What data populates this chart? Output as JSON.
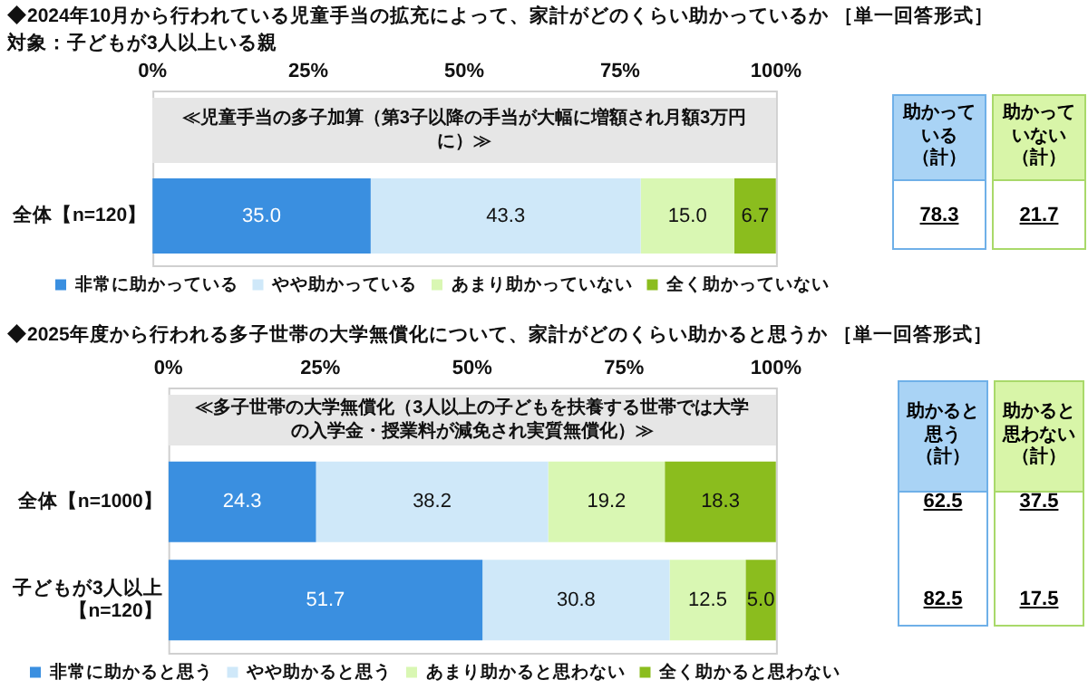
{
  "chart_data": [
    {
      "type": "bar",
      "orientation": "horizontal",
      "stacked": true,
      "title": "◆2024年10月から行われている児童手当の拡充によって、家計がどのくらい助かっているか ［単一回答形式］",
      "subtitle": "対象：子どもが3人以上いる親",
      "categories": [
        "全体【n=120】"
      ],
      "series": [
        {
          "name": "非常に助かっている",
          "color": "#3a8fe0",
          "values": [
            35.0
          ],
          "value_labels": [
            "35.0"
          ]
        },
        {
          "name": "やや助かっている",
          "color": "#cfe8f9",
          "values": [
            43.3
          ],
          "value_labels": [
            "43.3"
          ]
        },
        {
          "name": "あまり助かっていない",
          "color": "#d9f7b3",
          "values": [
            15.0
          ],
          "value_labels": [
            "15.0"
          ]
        },
        {
          "name": "全く助かっていない",
          "color": "#8bbd1e",
          "values": [
            6.7
          ],
          "value_labels": [
            "6.7"
          ]
        }
      ],
      "xlim": [
        0,
        100
      ],
      "xticks": [
        {
          "value": 0,
          "label": "0%"
        },
        {
          "value": 25,
          "label": "25%"
        },
        {
          "value": 50,
          "label": "50%"
        },
        {
          "value": 75,
          "label": "75%"
        },
        {
          "value": 100,
          "label": "100%"
        }
      ],
      "legend": "bottom",
      "grid": false,
      "annotations": [
        "≪児童手当の多子加算（第3子以降の手当が大幅に増額され月額3万円に）≫",
        "助かっている（計）",
        "78.3",
        "助かっていない（計）",
        "21.7"
      ]
    },
    {
      "type": "bar",
      "orientation": "horizontal",
      "stacked": true,
      "title": "◆2025年度から行われる多子世帯の大学無償化について、家計がどのくらい助かると思うか ［単一回答形式］",
      "categories": [
        "全体【n=1000】",
        "子どもが3人以上【n=120】"
      ],
      "series": [
        {
          "name": "非常に助かると思う",
          "color": "#3a8fe0",
          "values": [
            24.3,
            51.7
          ],
          "value_labels": [
            "24.3",
            "51.7"
          ]
        },
        {
          "name": "やや助かると思う",
          "color": "#cfe8f9",
          "values": [
            38.2,
            30.8
          ],
          "value_labels": [
            "38.2",
            "30.8"
          ]
        },
        {
          "name": "あまり助かると思わない",
          "color": "#d9f7b3",
          "values": [
            19.2,
            12.5
          ],
          "value_labels": [
            "19.2",
            "12.5"
          ]
        },
        {
          "name": "全く助かると思わない",
          "color": "#8bbd1e",
          "values": [
            18.3,
            5.0
          ],
          "value_labels": [
            "18.3",
            "5.0"
          ]
        }
      ],
      "xlim": [
        0,
        100
      ],
      "xticks": [
        {
          "value": 0,
          "label": "0%"
        },
        {
          "value": 25,
          "label": "25%"
        },
        {
          "value": 50,
          "label": "50%"
        },
        {
          "value": 75,
          "label": "75%"
        },
        {
          "value": 100,
          "label": "100%"
        }
      ],
      "legend": "bottom",
      "grid": false,
      "annotations": [
        "≪多子世帯の大学無償化（3人以上の子どもを扶養する世帯では大学の入学金・授業料が減免され実質無償化）≫",
        "助かると思う（計）",
        "62.5",
        "82.5",
        "助かると思わない（計）",
        "37.5",
        "17.5"
      ]
    }
  ]
}
